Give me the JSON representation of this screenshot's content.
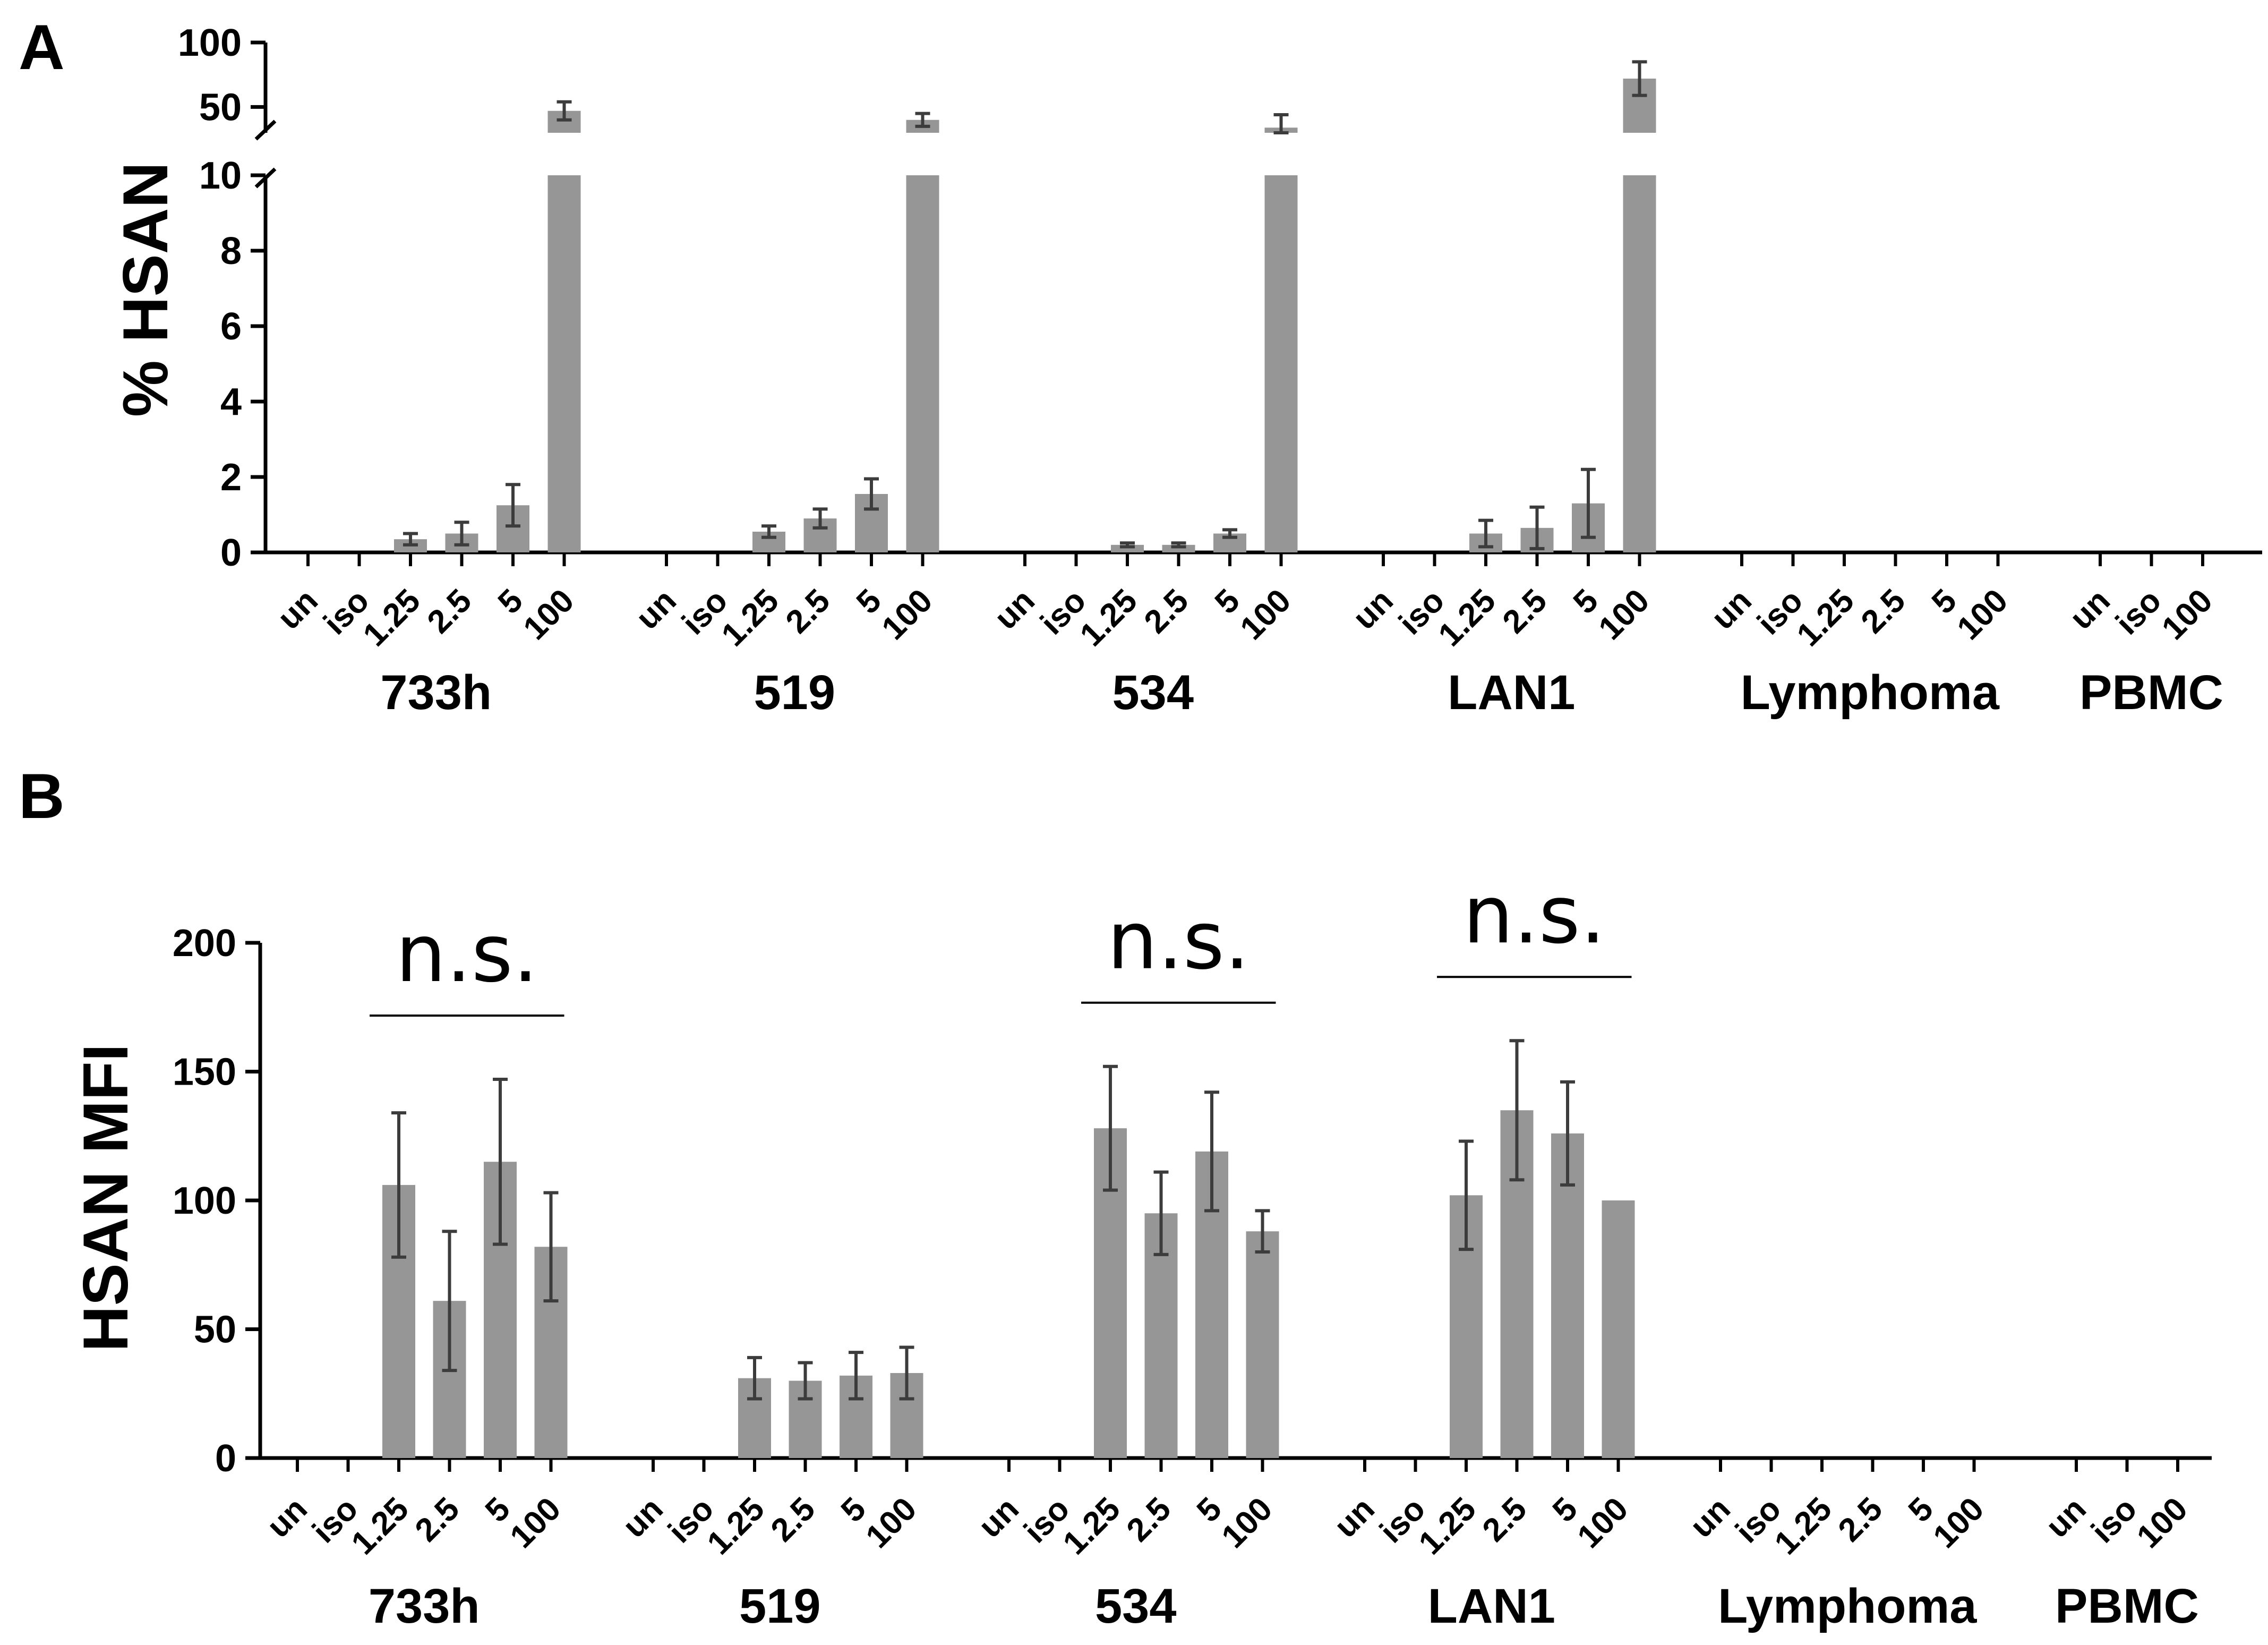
{
  "chart_data": [
    {
      "type": "bar",
      "panel": "A",
      "ylabel": "% HSAN",
      "axis_break": {
        "lower_range": [
          0,
          10
        ],
        "upper_range": [
          30,
          100
        ]
      },
      "yticks_lower": [
        0,
        2,
        4,
        6,
        8,
        10
      ],
      "yticks_upper": [
        50,
        100
      ],
      "groups": [
        {
          "name": "733h",
          "categories": [
            "un",
            "iso",
            "1.25",
            "2.5",
            "5",
            "100"
          ],
          "values": [
            0,
            0,
            0.35,
            0.5,
            1.25,
            47
          ],
          "errors": [
            0,
            0,
            0.15,
            0.3,
            0.55,
            7
          ]
        },
        {
          "name": "519",
          "categories": [
            "un",
            "iso",
            "1.25",
            "2.5",
            "5",
            "100"
          ],
          "values": [
            0,
            0,
            0.55,
            0.9,
            1.55,
            40
          ],
          "errors": [
            0,
            0,
            0.15,
            0.25,
            0.4,
            5
          ]
        },
        {
          "name": "534",
          "categories": [
            "un",
            "iso",
            "1.25",
            "2.5",
            "5",
            "100"
          ],
          "values": [
            0,
            0,
            0.2,
            0.2,
            0.5,
            34
          ],
          "errors": [
            0,
            0,
            0.05,
            0.05,
            0.1,
            10
          ]
        },
        {
          "name": "LAN1",
          "categories": [
            "un",
            "iso",
            "1.25",
            "2.5",
            "5",
            "100"
          ],
          "values": [
            0,
            0,
            0.5,
            0.65,
            1.3,
            72
          ],
          "errors": [
            0,
            0,
            0.35,
            0.55,
            0.9,
            13
          ]
        },
        {
          "name": "Lymphoma",
          "categories": [
            "un",
            "iso",
            "1.25",
            "2.5",
            "5",
            "100"
          ],
          "values": [
            0,
            0,
            0,
            0,
            0,
            0
          ],
          "errors": [
            0,
            0,
            0,
            0,
            0,
            0
          ]
        },
        {
          "name": "PBMC",
          "categories": [
            "un",
            "iso",
            "100"
          ],
          "values": [
            0,
            0,
            0
          ],
          "errors": [
            0,
            0,
            0
          ]
        }
      ]
    },
    {
      "type": "bar",
      "panel": "B",
      "ylabel": "HSAN MFI",
      "ylim": [
        0,
        200
      ],
      "yticks": [
        0,
        50,
        100,
        150,
        200
      ],
      "groups": [
        {
          "name": "733h",
          "categories": [
            "un",
            "iso",
            "1.25",
            "2.5",
            "5",
            "100"
          ],
          "values": [
            0,
            0,
            106,
            61,
            115,
            82
          ],
          "errors": [
            0,
            0,
            28,
            27,
            32,
            21
          ]
        },
        {
          "name": "519",
          "categories": [
            "un",
            "iso",
            "1.25",
            "2.5",
            "5",
            "100"
          ],
          "values": [
            0,
            0,
            31,
            30,
            32,
            33
          ],
          "errors": [
            0,
            0,
            8,
            7,
            9,
            10
          ]
        },
        {
          "name": "534",
          "categories": [
            "un",
            "iso",
            "1.25",
            "2.5",
            "5",
            "100"
          ],
          "values": [
            0,
            0,
            128,
            95,
            119,
            88
          ],
          "errors": [
            0,
            0,
            24,
            16,
            23,
            8
          ]
        },
        {
          "name": "LAN1",
          "categories": [
            "un",
            "iso",
            "1.25",
            "2.5",
            "5",
            "100"
          ],
          "values": [
            0,
            0,
            102,
            135,
            126,
            100
          ],
          "errors": [
            0,
            0,
            21,
            27,
            20,
            0
          ]
        },
        {
          "name": "Lymphoma",
          "categories": [
            "un",
            "iso",
            "1.25",
            "2.5",
            "5",
            "100"
          ],
          "values": [
            0,
            0,
            0,
            0,
            0,
            0
          ],
          "errors": [
            0,
            0,
            0,
            0,
            0,
            0
          ]
        },
        {
          "name": "PBMC",
          "categories": [
            "un",
            "iso",
            "100"
          ],
          "values": [
            0,
            0,
            0
          ],
          "errors": [
            0,
            0,
            0
          ]
        }
      ],
      "annotations": [
        {
          "text": "n.s.",
          "group": "733h"
        },
        {
          "text": "n.s.",
          "group": "534"
        },
        {
          "text": "n.s.",
          "group": "LAN1"
        }
      ]
    }
  ]
}
